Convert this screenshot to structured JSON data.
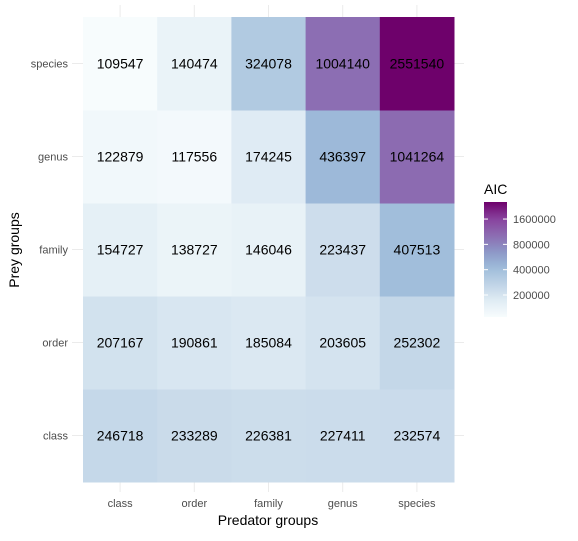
{
  "chart_data": {
    "type": "heatmap",
    "title": "",
    "xlabel": "Predator groups",
    "ylabel": "Prey groups",
    "x_categories": [
      "class",
      "order",
      "family",
      "genus",
      "species"
    ],
    "y_categories": [
      "class",
      "order",
      "family",
      "genus",
      "species"
    ],
    "values": [
      [
        246718,
        233289,
        226381,
        227411,
        232574
      ],
      [
        207167,
        190861,
        185084,
        203605,
        252302
      ],
      [
        154727,
        138727,
        146046,
        223437,
        407513
      ],
      [
        122879,
        117556,
        174245,
        436397,
        1041264
      ],
      [
        109547,
        140474,
        324078,
        1004140,
        2551540
      ]
    ],
    "legend": {
      "title": "AIC",
      "ticks": [
        200000,
        400000,
        800000,
        1600000
      ],
      "tick_labels": [
        "200000",
        "400000",
        "800000",
        "1600000"
      ],
      "placement": "right",
      "scale": "log"
    },
    "colors": {
      "low": "#f7fcfd",
      "high": "#6a0170",
      "palette": [
        "#f7fcfd",
        "#e0ecf4",
        "#bfd3e6",
        "#9ebcda",
        "#8c96c6",
        "#8c6bb1",
        "#88419d",
        "#6e016b"
      ]
    },
    "grid": true
  }
}
